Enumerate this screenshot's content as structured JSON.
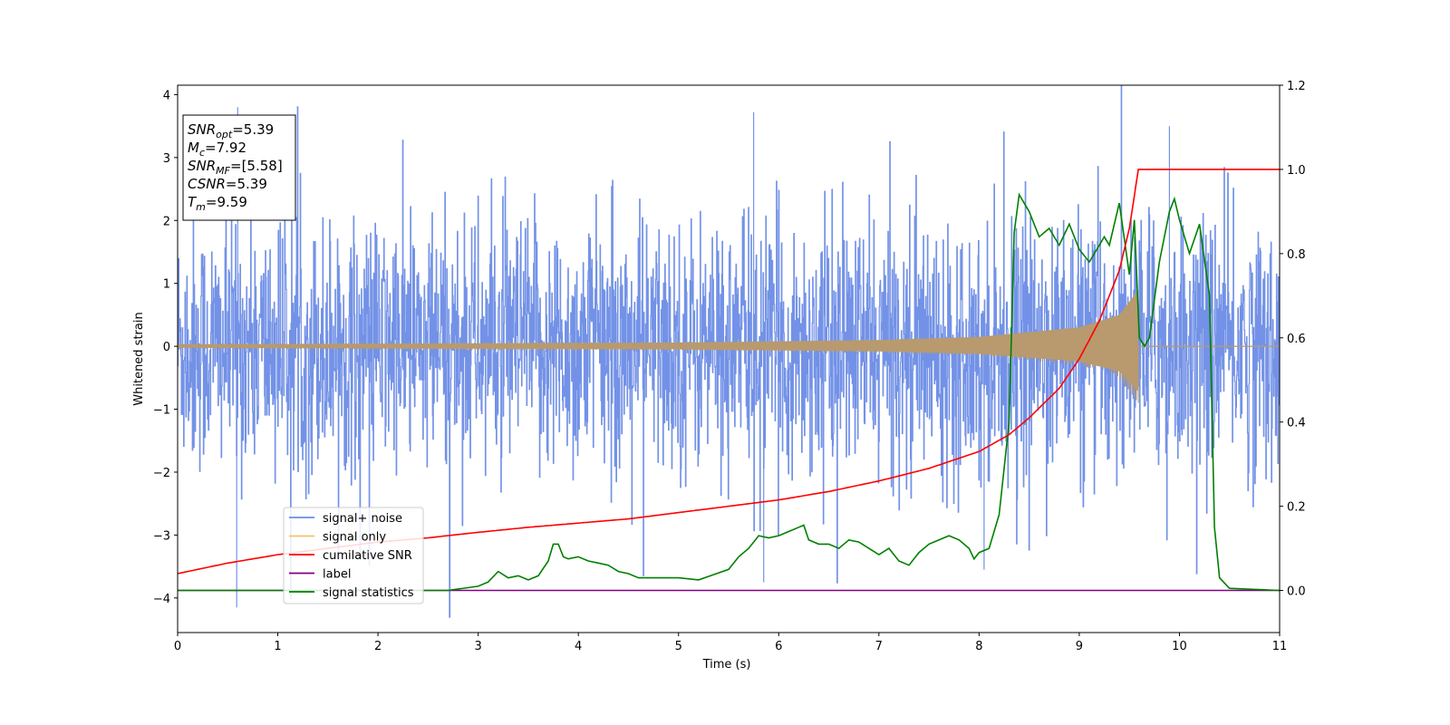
{
  "chart_data": {
    "type": "line",
    "xlabel": "Time (s)",
    "ylabel": "Whitened strain",
    "xlim": [
      0,
      11
    ],
    "ylim": [
      -4.55,
      4.15
    ],
    "y2lim": [
      -0.1,
      1.2
    ],
    "xticks": [
      "0",
      "1",
      "2",
      "3",
      "4",
      "5",
      "6",
      "7",
      "8",
      "9",
      "10",
      "11"
    ],
    "yticks": [
      "4",
      "3",
      "2",
      "1",
      "0",
      "−1",
      "−2",
      "−3",
      "−4"
    ],
    "y2ticks": [
      "1.2",
      "1.0",
      "0.8",
      "0.6",
      "0.4",
      "0.2",
      "0.0"
    ],
    "legend_position": "lower-left",
    "legend": [
      "signal+ noise",
      "signal only",
      "cumilative SNR",
      "label",
      "signal statistics"
    ],
    "colors": {
      "signal_noise": "#6b8ce6",
      "signal_only": "#f5c06a",
      "signal_only_overlap": "#b89a6e",
      "cumulative_snr": "#ff0000",
      "label": "#800080",
      "signal_statistics": "#008000"
    },
    "series": [
      {
        "name": "signal+ noise",
        "axis": "left",
        "description_stats": {
          "mean": 0,
          "std": 1.0,
          "extrema": [
            [
              0.59,
              -4.15
            ],
            [
              0.6,
              3.8
            ],
            [
              5.85,
              -3.75
            ],
            [
              5.75,
              3.72
            ],
            [
              9.9,
              3.5
            ],
            [
              8.05,
              -3.55
            ]
          ]
        }
      },
      {
        "name": "signal only",
        "axis": "left",
        "chirp": {
          "tc": 9.59,
          "envelope": [
            [
              0,
              0.03
            ],
            [
              5.0,
              0.06
            ],
            [
              7.0,
              0.1
            ],
            [
              8.0,
              0.15
            ],
            [
              9.0,
              0.3
            ],
            [
              9.4,
              0.5
            ],
            [
              9.59,
              0.9
            ]
          ]
        }
      },
      {
        "name": "cumilative SNR",
        "axis": "right",
        "x": [
          0,
          0.5,
          1,
          1.5,
          2,
          2.5,
          3,
          3.5,
          4,
          4.5,
          5,
          5.5,
          6,
          6.5,
          7,
          7.5,
          8,
          8.3,
          8.5,
          8.8,
          9.0,
          9.2,
          9.4,
          9.5,
          9.59,
          9.6,
          11
        ],
        "y": [
          0.04,
          0.065,
          0.085,
          0.1,
          0.115,
          0.125,
          0.138,
          0.15,
          0.16,
          0.17,
          0.185,
          0.2,
          0.215,
          0.235,
          0.26,
          0.29,
          0.33,
          0.37,
          0.41,
          0.48,
          0.55,
          0.64,
          0.76,
          0.86,
          1.0,
          1.0,
          1.0
        ]
      },
      {
        "name": "label",
        "axis": "right",
        "x": [
          0,
          11
        ],
        "y": [
          0.0,
          0.0
        ]
      },
      {
        "name": "signal statistics",
        "axis": "right",
        "x": [
          0,
          0.5,
          1,
          1.5,
          2,
          2.5,
          2.7,
          3.0,
          3.1,
          3.2,
          3.3,
          3.4,
          3.5,
          3.6,
          3.7,
          3.75,
          3.8,
          3.85,
          3.9,
          4.0,
          4.1,
          4.2,
          4.3,
          4.4,
          4.5,
          4.6,
          4.8,
          5.0,
          5.2,
          5.5,
          5.6,
          5.7,
          5.8,
          5.9,
          6.0,
          6.1,
          6.2,
          6.25,
          6.3,
          6.4,
          6.5,
          6.6,
          6.7,
          6.8,
          6.9,
          7.0,
          7.1,
          7.2,
          7.3,
          7.4,
          7.5,
          7.6,
          7.7,
          7.8,
          7.9,
          7.95,
          8.0,
          8.1,
          8.2,
          8.3,
          8.35,
          8.4,
          8.5,
          8.6,
          8.7,
          8.8,
          8.9,
          9.0,
          9.1,
          9.2,
          9.25,
          9.3,
          9.4,
          9.5,
          9.55,
          9.6,
          9.65,
          9.7,
          9.8,
          9.9,
          9.95,
          10.0,
          10.1,
          10.2,
          10.3,
          10.35,
          10.4,
          10.5,
          11.0
        ],
        "y": [
          0.0,
          0.0,
          0.0,
          0.0,
          0.0,
          0.0,
          0.0,
          0.01,
          0.02,
          0.045,
          0.03,
          0.035,
          0.025,
          0.035,
          0.07,
          0.11,
          0.11,
          0.08,
          0.075,
          0.08,
          0.07,
          0.065,
          0.06,
          0.045,
          0.04,
          0.03,
          0.03,
          0.03,
          0.025,
          0.05,
          0.08,
          0.1,
          0.13,
          0.125,
          0.13,
          0.14,
          0.15,
          0.155,
          0.12,
          0.11,
          0.11,
          0.1,
          0.12,
          0.115,
          0.1,
          0.085,
          0.1,
          0.07,
          0.06,
          0.09,
          0.11,
          0.12,
          0.13,
          0.12,
          0.1,
          0.075,
          0.09,
          0.1,
          0.18,
          0.4,
          0.85,
          0.94,
          0.9,
          0.84,
          0.86,
          0.82,
          0.87,
          0.81,
          0.78,
          0.82,
          0.84,
          0.82,
          0.92,
          0.75,
          0.88,
          0.6,
          0.58,
          0.6,
          0.78,
          0.9,
          0.93,
          0.88,
          0.8,
          0.87,
          0.7,
          0.15,
          0.03,
          0.005,
          0.0
        ]
      }
    ],
    "annotation_lines": [
      {
        "label": "SNR",
        "sub": "opt",
        "italic": true,
        "value": "=5.39"
      },
      {
        "label": "M",
        "sub": "c",
        "italic": true,
        "value": "=7.92"
      },
      {
        "label": "SNR",
        "sub": "MF",
        "italic": true,
        "value": "=[5.58]"
      },
      {
        "label": "CSNR",
        "sub": "",
        "italic": true,
        "value": "=5.39"
      },
      {
        "label": "T",
        "sub": "m",
        "italic": true,
        "value": "=9.59"
      }
    ]
  }
}
